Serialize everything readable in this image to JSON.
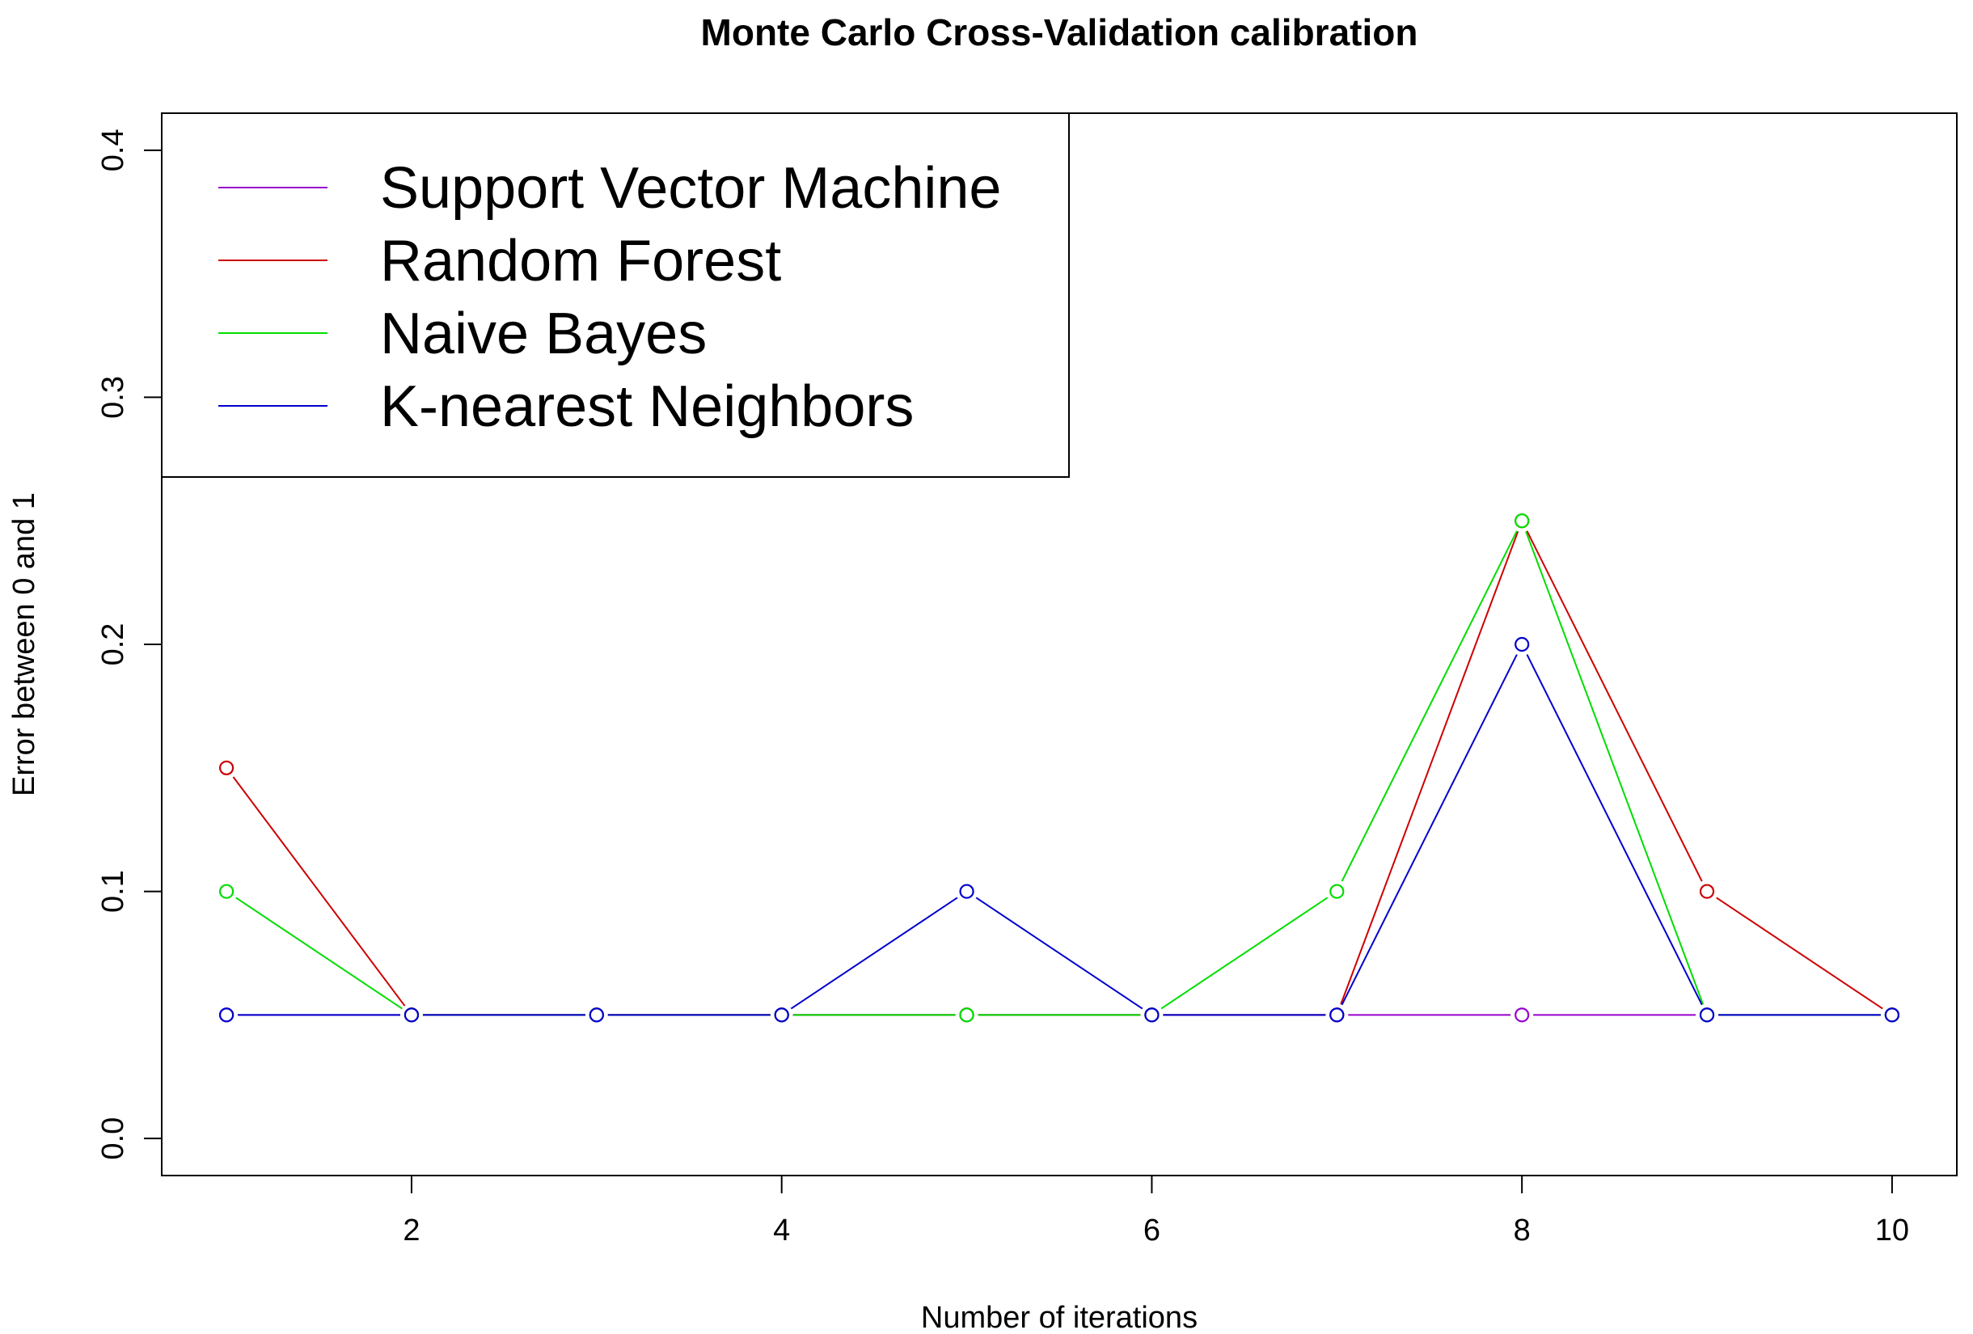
{
  "chart_data": {
    "type": "line",
    "title": "Monte Carlo Cross-Validation calibration",
    "xlabel": "Number of iterations",
    "ylabel": "Error between 0 and 1",
    "x": [
      1,
      2,
      3,
      4,
      5,
      6,
      7,
      8,
      9,
      10
    ],
    "xlim": [
      0.65,
      10.35
    ],
    "ylim": [
      -0.015,
      0.415
    ],
    "xticks": [
      2,
      4,
      6,
      8,
      10
    ],
    "yticks": [
      0.0,
      0.1,
      0.2,
      0.3,
      0.4
    ],
    "xtick_labels": [
      "2",
      "4",
      "6",
      "8",
      "10"
    ],
    "ytick_labels": [
      "0.0",
      "0.1",
      "0.2",
      "0.3",
      "0.4"
    ],
    "grid": false,
    "legend_position": "top-left",
    "series": [
      {
        "name": "Support Vector Machine",
        "color": "#9900cc",
        "values": [
          0.05,
          0.05,
          0.05,
          0.05,
          0.05,
          0.05,
          0.05,
          0.05,
          0.05,
          0.05
        ]
      },
      {
        "name": "Random Forest",
        "color": "#cc0000",
        "values": [
          0.15,
          0.05,
          0.05,
          0.05,
          0.05,
          0.05,
          0.05,
          0.25,
          0.1,
          0.05
        ]
      },
      {
        "name": "Naive Bayes",
        "color": "#00dd00",
        "values": [
          0.1,
          0.05,
          0.05,
          0.05,
          0.05,
          0.05,
          0.1,
          0.25,
          0.05,
          0.05
        ]
      },
      {
        "name": "K-nearest Neighbors",
        "color": "#0000cc",
        "values": [
          0.05,
          0.05,
          0.05,
          0.05,
          0.1,
          0.05,
          0.05,
          0.2,
          0.05,
          0.05
        ]
      }
    ]
  }
}
